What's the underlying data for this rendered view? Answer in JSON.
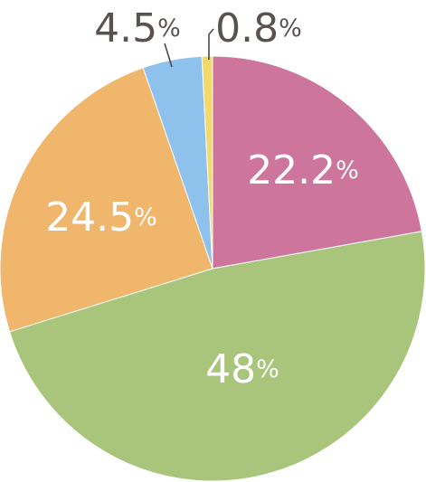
{
  "chart_data": {
    "type": "pie",
    "title": "",
    "start": "top",
    "direction": "clockwise",
    "slices": [
      {
        "value": 22.2,
        "label_value": "22.2",
        "label_unit": "%",
        "color": "#CD759D",
        "label_color": "#ffffff",
        "label_position": "inside"
      },
      {
        "value": 48,
        "label_value": "48",
        "label_unit": "%",
        "color": "#A9C47B",
        "label_color": "#ffffff",
        "label_position": "inside"
      },
      {
        "value": 24.5,
        "label_value": "24.5",
        "label_unit": "%",
        "color": "#F0B66B",
        "label_color": "#ffffff",
        "label_position": "inside"
      },
      {
        "value": 4.5,
        "label_value": "4.5",
        "label_unit": "%",
        "color": "#8EC1EC",
        "label_color": "#5A5250",
        "label_position": "outside"
      },
      {
        "value": 0.8,
        "label_value": "0.8",
        "label_unit": "%",
        "color": "#F2D96A",
        "label_color": "#5A5250",
        "label_position": "outside"
      }
    ]
  }
}
